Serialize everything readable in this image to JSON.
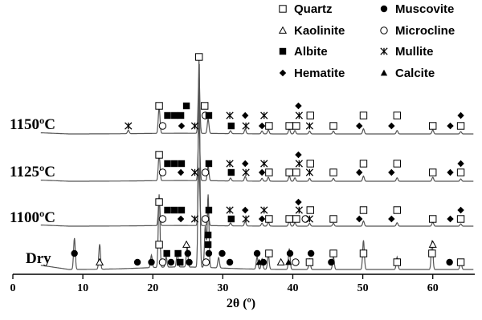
{
  "chart_data": {
    "type": "line",
    "title": "",
    "xlabel": "2θ (º)",
    "ylabel": "",
    "xlim": [
      0,
      66
    ],
    "x_ticks": [
      0,
      10,
      20,
      30,
      40,
      50,
      60
    ],
    "grid": false,
    "legend_position": "top-right",
    "series_style": {
      "color": "#555555"
    },
    "legend": [
      {
        "key": "quartz",
        "label": "Quartz",
        "marker": "open-square"
      },
      {
        "key": "muscovite",
        "label": "Muscovite",
        "marker": "filled-circle"
      },
      {
        "key": "kaolinite",
        "label": "Kaolinite",
        "marker": "open-triangle"
      },
      {
        "key": "microcline",
        "label": "Microcline",
        "marker": "open-circle"
      },
      {
        "key": "albite",
        "label": "Albite",
        "marker": "filled-square"
      },
      {
        "key": "mullite",
        "label": "Mullite",
        "marker": "asterisk"
      },
      {
        "key": "hematite",
        "label": "Hematite",
        "marker": "filled-diamond"
      },
      {
        "key": "calcite",
        "label": "Calcite",
        "marker": "filled-triangle"
      }
    ],
    "series": [
      {
        "label": "1150ºC",
        "peaks": [
          [
            16.5,
            0.06
          ],
          [
            20.9,
            0.45
          ],
          [
            26.6,
            1.0
          ],
          [
            27.9,
            0.25
          ],
          [
            31.1,
            0.05
          ],
          [
            33.2,
            0.08
          ],
          [
            35.6,
            0.05
          ],
          [
            36.5,
            0.07
          ],
          [
            39.5,
            0.09
          ],
          [
            40.3,
            0.06
          ],
          [
            42.4,
            0.05
          ],
          [
            45.8,
            0.05
          ],
          [
            50.1,
            0.09
          ],
          [
            54.9,
            0.06
          ],
          [
            60.0,
            0.07
          ],
          [
            64.0,
            0.04
          ]
        ],
        "markers": [
          {
            "t": "mullite",
            "x": 16.5,
            "row": 0
          },
          {
            "t": "quartz",
            "x": 20.9,
            "row": 3
          },
          {
            "t": "microcline",
            "x": 21.4,
            "row": 0
          },
          {
            "t": "albite",
            "x": 22.1,
            "row": 1
          },
          {
            "t": "albite",
            "x": 23.1,
            "row": 1
          },
          {
            "t": "albite",
            "x": 24.0,
            "row": 1
          },
          {
            "t": "albite",
            "x": 24.8,
            "row": 2
          },
          {
            "t": "hematite",
            "x": 24.1,
            "row": 0
          },
          {
            "t": "mullite",
            "x": 26.0,
            "row": 0
          },
          {
            "t": "microcline",
            "x": 27.5,
            "row": 1
          },
          {
            "t": "albite",
            "x": 28.0,
            "row": 1
          },
          {
            "t": "quartz",
            "x": 27.4,
            "row": 2
          },
          {
            "t": "mullite",
            "x": 31.0,
            "row": 1
          },
          {
            "t": "albite",
            "x": 31.2,
            "row": 0
          },
          {
            "t": "hematite",
            "x": 33.2,
            "row": 1
          },
          {
            "t": "mullite",
            "x": 33.3,
            "row": 0
          },
          {
            "t": "hematite",
            "x": 35.6,
            "row": 0
          },
          {
            "t": "mullite",
            "x": 35.9,
            "row": 1
          },
          {
            "t": "quartz",
            "x": 36.6,
            "row": 0
          },
          {
            "t": "quartz",
            "x": 39.5,
            "row": 0
          },
          {
            "t": "hematite",
            "x": 40.8,
            "row": 2
          },
          {
            "t": "mullite",
            "x": 40.9,
            "row": 1
          },
          {
            "t": "quartz",
            "x": 40.5,
            "row": 0
          },
          {
            "t": "mullite",
            "x": 42.4,
            "row": 0
          },
          {
            "t": "quartz",
            "x": 42.5,
            "row": 1
          },
          {
            "t": "quartz",
            "x": 45.8,
            "row": 0
          },
          {
            "t": "hematite",
            "x": 49.5,
            "row": 0
          },
          {
            "t": "quartz",
            "x": 50.1,
            "row": 1
          },
          {
            "t": "hematite",
            "x": 54.1,
            "row": 0
          },
          {
            "t": "quartz",
            "x": 54.9,
            "row": 1
          },
          {
            "t": "quartz",
            "x": 60.0,
            "row": 0
          },
          {
            "t": "hematite",
            "x": 62.5,
            "row": 0
          },
          {
            "t": "quartz",
            "x": 64.0,
            "row": 0
          },
          {
            "t": "hematite",
            "x": 64.0,
            "row": 1
          }
        ]
      },
      {
        "label": "1125ºC",
        "peaks": [
          [
            20.9,
            0.45
          ],
          [
            26.6,
            1.0
          ],
          [
            27.9,
            0.25
          ],
          [
            31.1,
            0.05
          ],
          [
            33.2,
            0.08
          ],
          [
            35.6,
            0.05
          ],
          [
            36.5,
            0.07
          ],
          [
            39.5,
            0.09
          ],
          [
            40.3,
            0.06
          ],
          [
            42.4,
            0.05
          ],
          [
            45.8,
            0.05
          ],
          [
            50.1,
            0.09
          ],
          [
            54.9,
            0.06
          ],
          [
            60.0,
            0.07
          ],
          [
            64.0,
            0.04
          ]
        ],
        "markers": [
          {
            "t": "quartz",
            "x": 20.9,
            "row": 2
          },
          {
            "t": "microcline",
            "x": 21.4,
            "row": 0
          },
          {
            "t": "albite",
            "x": 22.1,
            "row": 1
          },
          {
            "t": "albite",
            "x": 23.1,
            "row": 1
          },
          {
            "t": "albite",
            "x": 24.1,
            "row": 1
          },
          {
            "t": "hematite",
            "x": 24.0,
            "row": 0
          },
          {
            "t": "mullite",
            "x": 26.0,
            "row": 0
          },
          {
            "t": "microcline",
            "x": 27.5,
            "row": 0
          },
          {
            "t": "albite",
            "x": 28.0,
            "row": 1
          },
          {
            "t": "albite",
            "x": 31.2,
            "row": 0
          },
          {
            "t": "mullite",
            "x": 31.0,
            "row": 1
          },
          {
            "t": "hematite",
            "x": 33.2,
            "row": 1
          },
          {
            "t": "mullite",
            "x": 33.3,
            "row": 0
          },
          {
            "t": "hematite",
            "x": 35.6,
            "row": 0
          },
          {
            "t": "mullite",
            "x": 35.9,
            "row": 1
          },
          {
            "t": "quartz",
            "x": 36.6,
            "row": 0
          },
          {
            "t": "quartz",
            "x": 39.5,
            "row": 0
          },
          {
            "t": "hematite",
            "x": 40.8,
            "row": 2
          },
          {
            "t": "mullite",
            "x": 40.9,
            "row": 1
          },
          {
            "t": "quartz",
            "x": 40.5,
            "row": 0
          },
          {
            "t": "mullite",
            "x": 42.4,
            "row": 0
          },
          {
            "t": "quartz",
            "x": 42.5,
            "row": 1
          },
          {
            "t": "quartz",
            "x": 45.8,
            "row": 0
          },
          {
            "t": "hematite",
            "x": 49.5,
            "row": 0
          },
          {
            "t": "quartz",
            "x": 50.1,
            "row": 1
          },
          {
            "t": "hematite",
            "x": 54.1,
            "row": 0
          },
          {
            "t": "quartz",
            "x": 54.9,
            "row": 1
          },
          {
            "t": "quartz",
            "x": 60.0,
            "row": 0
          },
          {
            "t": "hematite",
            "x": 62.5,
            "row": 0
          },
          {
            "t": "quartz",
            "x": 64.0,
            "row": 0
          },
          {
            "t": "hematite",
            "x": 64.0,
            "row": 1
          }
        ]
      },
      {
        "label": "1100ºC",
        "peaks": [
          [
            20.9,
            0.45
          ],
          [
            26.6,
            1.0
          ],
          [
            27.9,
            0.25
          ],
          [
            31.1,
            0.05
          ],
          [
            33.2,
            0.08
          ],
          [
            35.6,
            0.05
          ],
          [
            36.5,
            0.07
          ],
          [
            39.5,
            0.09
          ],
          [
            40.3,
            0.06
          ],
          [
            42.4,
            0.05
          ],
          [
            45.8,
            0.05
          ],
          [
            50.1,
            0.09
          ],
          [
            54.9,
            0.06
          ],
          [
            60.0,
            0.07
          ],
          [
            64.0,
            0.04
          ]
        ],
        "markers": [
          {
            "t": "quartz",
            "x": 20.9,
            "row": 2
          },
          {
            "t": "microcline",
            "x": 21.4,
            "row": 0
          },
          {
            "t": "albite",
            "x": 22.1,
            "row": 1
          },
          {
            "t": "albite",
            "x": 23.1,
            "row": 1
          },
          {
            "t": "albite",
            "x": 24.1,
            "row": 1
          },
          {
            "t": "hematite",
            "x": 24.0,
            "row": 0
          },
          {
            "t": "mullite",
            "x": 26.0,
            "row": 0
          },
          {
            "t": "microcline",
            "x": 27.5,
            "row": 0
          },
          {
            "t": "albite",
            "x": 28.0,
            "row": 1
          },
          {
            "t": "albite",
            "x": 31.2,
            "row": 0
          },
          {
            "t": "mullite",
            "x": 31.0,
            "row": 1
          },
          {
            "t": "hematite",
            "x": 33.2,
            "row": 1
          },
          {
            "t": "mullite",
            "x": 33.3,
            "row": 0
          },
          {
            "t": "hematite",
            "x": 35.6,
            "row": 0
          },
          {
            "t": "mullite",
            "x": 35.9,
            "row": 1
          },
          {
            "t": "quartz",
            "x": 36.6,
            "row": 0
          },
          {
            "t": "quartz",
            "x": 39.5,
            "row": 0
          },
          {
            "t": "hematite",
            "x": 40.8,
            "row": 2
          },
          {
            "t": "mullite",
            "x": 40.9,
            "row": 1
          },
          {
            "t": "quartz",
            "x": 40.5,
            "row": 0
          },
          {
            "t": "microcline",
            "x": 41.8,
            "row": 0
          },
          {
            "t": "mullite",
            "x": 42.4,
            "row": 0
          },
          {
            "t": "quartz",
            "x": 42.5,
            "row": 1
          },
          {
            "t": "quartz",
            "x": 45.8,
            "row": 0
          },
          {
            "t": "hematite",
            "x": 49.5,
            "row": 0
          },
          {
            "t": "quartz",
            "x": 50.1,
            "row": 1
          },
          {
            "t": "hematite",
            "x": 54.1,
            "row": 0
          },
          {
            "t": "quartz",
            "x": 54.9,
            "row": 1
          },
          {
            "t": "quartz",
            "x": 60.0,
            "row": 0
          },
          {
            "t": "hematite",
            "x": 62.5,
            "row": 0
          },
          {
            "t": "quartz",
            "x": 64.0,
            "row": 0
          },
          {
            "t": "hematite",
            "x": 64.0,
            "row": 1
          }
        ]
      },
      {
        "label": "Dry",
        "peaks": [
          [
            8.8,
            0.15
          ],
          [
            12.4,
            0.12
          ],
          [
            19.8,
            0.06
          ],
          [
            20.9,
            0.35
          ],
          [
            21.9,
            0.05
          ],
          [
            23.5,
            0.07
          ],
          [
            24.9,
            0.1
          ],
          [
            26.6,
            1.0
          ],
          [
            27.5,
            0.2
          ],
          [
            27.9,
            0.35
          ],
          [
            29.4,
            0.05
          ],
          [
            34.9,
            0.06
          ],
          [
            35.6,
            0.05
          ],
          [
            36.5,
            0.07
          ],
          [
            39.5,
            0.1
          ],
          [
            42.4,
            0.05
          ],
          [
            45.8,
            0.06
          ],
          [
            50.1,
            0.14
          ],
          [
            54.9,
            0.06
          ],
          [
            59.9,
            0.14
          ],
          [
            64.0,
            0.04
          ]
        ],
        "markers": [
          {
            "t": "muscovite",
            "x": 8.8,
            "row": 1
          },
          {
            "t": "kaolinite",
            "x": 12.4,
            "row": 0
          },
          {
            "t": "muscovite",
            "x": 17.8,
            "row": 0
          },
          {
            "t": "muscovite",
            "x": 19.8,
            "row": 0
          },
          {
            "t": "quartz",
            "x": 20.9,
            "row": 2
          },
          {
            "t": "microcline",
            "x": 21.4,
            "row": 0
          },
          {
            "t": "albite",
            "x": 22.0,
            "row": 1
          },
          {
            "t": "muscovite",
            "x": 22.6,
            "row": 0
          },
          {
            "t": "albite",
            "x": 23.6,
            "row": 1
          },
          {
            "t": "albite",
            "x": 23.9,
            "row": 0
          },
          {
            "t": "kaolinite",
            "x": 24.8,
            "row": 2
          },
          {
            "t": "muscovite",
            "x": 25.0,
            "row": 1
          },
          {
            "t": "muscovite",
            "x": 25.2,
            "row": 0
          },
          {
            "t": "microcline",
            "x": 27.6,
            "row": 0
          },
          {
            "t": "albite",
            "x": 27.9,
            "row": 3
          },
          {
            "t": "albite",
            "x": 27.9,
            "row": 2
          },
          {
            "t": "muscovite",
            "x": 28.0,
            "row": 1
          },
          {
            "t": "muscovite",
            "x": 29.9,
            "row": 1
          },
          {
            "t": "muscovite",
            "x": 31.0,
            "row": 0
          },
          {
            "t": "muscovite",
            "x": 34.9,
            "row": 1
          },
          {
            "t": "calcite",
            "x": 35.2,
            "row": 0
          },
          {
            "t": "muscovite",
            "x": 35.8,
            "row": 0
          },
          {
            "t": "quartz",
            "x": 36.6,
            "row": 1
          },
          {
            "t": "kaolinite",
            "x": 38.3,
            "row": 0
          },
          {
            "t": "calcite",
            "x": 39.4,
            "row": 0
          },
          {
            "t": "muscovite",
            "x": 39.6,
            "row": 1
          },
          {
            "t": "microcline",
            "x": 40.4,
            "row": 0
          },
          {
            "t": "quartz",
            "x": 42.4,
            "row": 0
          },
          {
            "t": "muscovite",
            "x": 42.6,
            "row": 1
          },
          {
            "t": "muscovite",
            "x": 45.5,
            "row": 0
          },
          {
            "t": "quartz",
            "x": 45.8,
            "row": 1
          },
          {
            "t": "quartz",
            "x": 50.1,
            "row": 1
          },
          {
            "t": "quartz",
            "x": 54.9,
            "row": 0
          },
          {
            "t": "quartz",
            "x": 59.9,
            "row": 1
          },
          {
            "t": "kaolinite",
            "x": 60.0,
            "row": 2
          },
          {
            "t": "muscovite",
            "x": 62.4,
            "row": 0
          },
          {
            "t": "quartz",
            "x": 64.0,
            "row": 0
          }
        ]
      }
    ],
    "top_marker": {
      "t": "quartz",
      "x": 26.6
    }
  }
}
